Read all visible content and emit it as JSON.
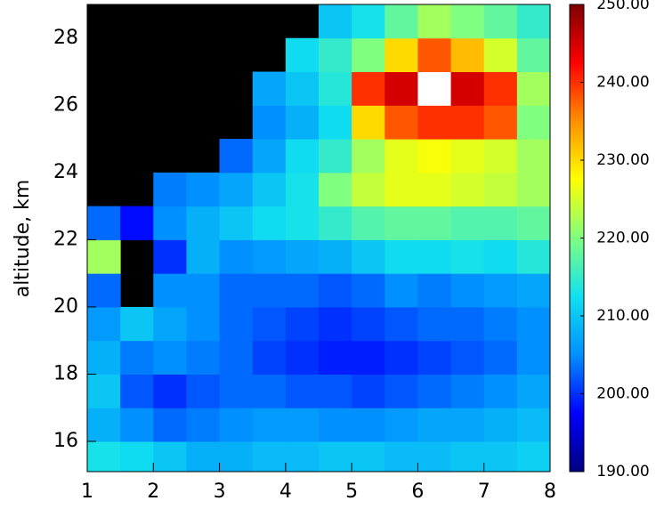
{
  "chart_data": {
    "type": "heatmap",
    "y_label": "altitude, km",
    "x": [
      1.25,
      1.75,
      2.25,
      2.75,
      3.25,
      3.75,
      4.25,
      4.75,
      5.25,
      5.75,
      6.25,
      6.75,
      7.25,
      7.75
    ],
    "y": [
      15.5,
      16.5,
      17.5,
      18.5,
      19.5,
      20.5,
      21.5,
      22.5,
      23.5,
      24.5,
      25.5,
      26.5,
      27.5,
      28.5
    ],
    "values": [
      [
        213,
        212,
        210,
        208,
        208,
        209,
        209,
        210,
        210,
        209,
        209,
        210,
        210,
        211
      ],
      [
        208,
        205,
        203,
        204,
        205,
        206,
        206,
        205,
        205,
        206,
        207,
        207,
        208,
        209
      ],
      [
        210,
        202,
        200,
        202,
        203,
        203,
        202,
        202,
        201,
        202,
        203,
        204,
        205,
        207
      ],
      [
        208,
        204,
        205,
        204,
        203,
        201,
        200,
        199,
        199,
        200,
        201,
        202,
        203,
        205
      ],
      [
        206,
        210,
        207,
        205,
        203,
        202,
        201,
        200,
        201,
        202,
        203,
        203,
        204,
        205
      ],
      [
        203,
        null,
        205,
        205,
        203,
        203,
        203,
        202,
        203,
        205,
        204,
        205,
        206,
        207
      ],
      [
        222,
        null,
        200,
        208,
        205,
        206,
        207,
        208,
        210,
        212,
        212,
        213,
        212,
        214
      ],
      [
        203,
        198,
        205,
        208,
        210,
        212,
        213,
        215,
        217,
        218,
        218,
        217,
        217,
        218
      ],
      [
        null,
        null,
        204,
        205,
        207,
        210,
        213,
        220,
        224,
        226,
        226,
        225,
        224,
        222
      ],
      [
        null,
        null,
        null,
        null,
        203,
        207,
        212,
        215,
        222,
        226,
        227,
        226,
        225,
        222
      ],
      [
        null,
        null,
        null,
        null,
        null,
        205,
        208,
        212,
        230,
        238,
        240,
        240,
        238,
        220
      ],
      [
        null,
        null,
        null,
        null,
        null,
        207,
        210,
        214,
        240,
        245,
        255,
        245,
        240,
        222
      ],
      [
        null,
        null,
        null,
        null,
        null,
        null,
        212,
        215,
        220,
        230,
        238,
        232,
        225,
        218
      ],
      [
        null,
        null,
        null,
        null,
        null,
        null,
        null,
        210,
        213,
        218,
        222,
        220,
        218,
        215
      ]
    ],
    "xlim": [
      1,
      8
    ],
    "xticks": [
      1,
      2,
      3,
      4,
      5,
      6,
      7,
      8
    ],
    "ylim": [
      15.1,
      29
    ],
    "yticks": [
      16,
      18,
      20,
      22,
      24,
      26,
      28
    ],
    "clim": [
      190,
      250
    ],
    "cticks": [
      {
        "value": 190,
        "label": "190.00"
      },
      {
        "value": 200,
        "label": "200.00"
      },
      {
        "value": 210,
        "label": "210.00"
      },
      {
        "value": 220,
        "label": "220.00"
      },
      {
        "value": 230,
        "label": "230.00"
      },
      {
        "value": 240,
        "label": "240.00"
      },
      {
        "value": 250,
        "label": "250.00"
      }
    ],
    "colormap": [
      "#00007f",
      "#0000ff",
      "#0090ff",
      "#10e0f0",
      "#80ff80",
      "#ffff00",
      "#ff9000",
      "#ff0000",
      "#7f0000"
    ],
    "over_color": "#ffffff",
    "missing_color": "#000000"
  }
}
